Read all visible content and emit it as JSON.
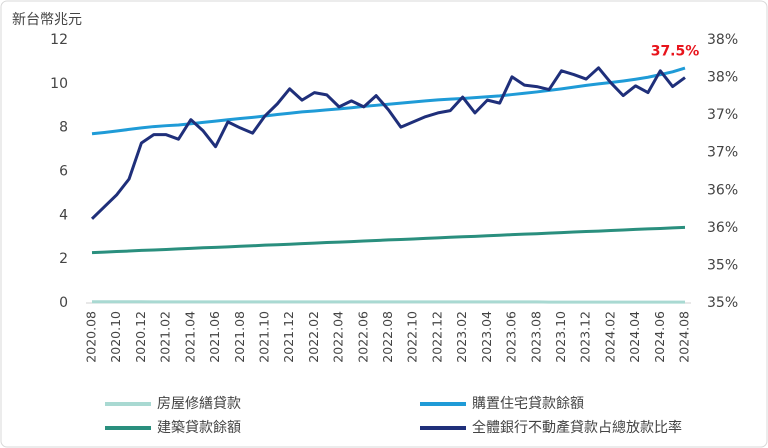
{
  "chart_data": {
    "type": "line",
    "y_label": "新台幣兆元",
    "categories": [
      "2020.08",
      null,
      "2020.10",
      null,
      "2020.12",
      null,
      "2021.02",
      null,
      "2021.04",
      null,
      "2021.06",
      null,
      "2021.08",
      null,
      "2021.10",
      null,
      "2021.12",
      null,
      "2022.02",
      null,
      "2022.04",
      null,
      "2022.06",
      null,
      "2022.08",
      null,
      "2022.10",
      null,
      "2022.12",
      null,
      "2023.02",
      null,
      "2023.04",
      null,
      "2023.06",
      null,
      "2023.08",
      null,
      "2023.10",
      null,
      "2023.12",
      null,
      "2024.02",
      null,
      "2024.04",
      null,
      "2024.06",
      null,
      "2024.08"
    ],
    "ylim": [
      0,
      12
    ],
    "yticks": [
      0,
      2,
      4,
      6,
      8,
      10,
      12
    ],
    "y2lim": [
      34.5,
      38.0
    ],
    "y2ticks": [
      {
        "value": 34.5,
        "label": "35%"
      },
      {
        "value": 35.0,
        "label": "35%"
      },
      {
        "value": 35.5,
        "label": "36%"
      },
      {
        "value": 36.0,
        "label": "36%"
      },
      {
        "value": 36.5,
        "label": "37%"
      },
      {
        "value": 37.0,
        "label": "37%"
      },
      {
        "value": 37.5,
        "label": "38%"
      },
      {
        "value": 38.0,
        "label": "38%"
      }
    ],
    "grid": false,
    "series": [
      {
        "name": "房屋修繕貸款",
        "color": "#a9d9d2",
        "values": [
          0.06,
          0.06,
          0.06,
          0.06,
          0.06,
          0.05,
          0.05,
          0.05,
          0.05,
          0.05,
          0.05,
          0.05,
          0.05,
          0.05,
          0.05,
          0.05,
          0.05,
          0.05,
          0.05,
          0.05,
          0.05,
          0.05,
          0.05,
          0.05,
          0.05,
          0.05,
          0.05,
          0.05,
          0.05,
          0.05,
          0.05,
          0.05,
          0.05,
          0.05,
          0.05,
          0.05,
          0.05,
          0.04,
          0.04,
          0.04,
          0.04,
          0.04,
          0.04,
          0.04,
          0.04,
          0.04,
          0.04,
          0.04,
          0.04
        ]
      },
      {
        "name": "購置住宅貸款餘額",
        "color": "#1f9bd7",
        "values": [
          7.72,
          7.78,
          7.85,
          7.92,
          7.99,
          8.05,
          8.09,
          8.12,
          8.18,
          8.24,
          8.3,
          8.36,
          8.42,
          8.47,
          8.53,
          8.6,
          8.66,
          8.72,
          8.76,
          8.81,
          8.86,
          8.91,
          8.97,
          9.02,
          9.07,
          9.12,
          9.17,
          9.22,
          9.27,
          9.3,
          9.33,
          9.37,
          9.41,
          9.45,
          9.51,
          9.57,
          9.63,
          9.7,
          9.77,
          9.85,
          9.93,
          10.0,
          10.06,
          10.13,
          10.21,
          10.3,
          10.42,
          10.55,
          10.72
        ]
      },
      {
        "name": "建築貸款餘額",
        "color": "#2a8f7e",
        "values": [
          2.3,
          2.32,
          2.35,
          2.37,
          2.4,
          2.42,
          2.44,
          2.47,
          2.49,
          2.52,
          2.54,
          2.56,
          2.59,
          2.61,
          2.64,
          2.66,
          2.68,
          2.71,
          2.73,
          2.76,
          2.78,
          2.8,
          2.83,
          2.85,
          2.88,
          2.9,
          2.92,
          2.95,
          2.97,
          3.0,
          3.02,
          3.04,
          3.07,
          3.09,
          3.12,
          3.14,
          3.16,
          3.19,
          3.21,
          3.24,
          3.26,
          3.28,
          3.31,
          3.33,
          3.36,
          3.38,
          3.4,
          3.43,
          3.45
        ]
      },
      {
        "name": "全體銀行不動產貸款占總放款比率",
        "color": "#1f2f7a",
        "axis": "y2",
        "values": [
          35.62,
          35.78,
          35.94,
          36.15,
          36.63,
          36.74,
          36.74,
          36.68,
          36.94,
          36.79,
          36.58,
          36.91,
          36.83,
          36.76,
          36.99,
          37.15,
          37.35,
          37.2,
          37.3,
          37.27,
          37.11,
          37.19,
          37.11,
          37.26,
          37.07,
          36.84,
          36.91,
          36.98,
          37.03,
          37.06,
          37.24,
          37.03,
          37.2,
          37.16,
          37.51,
          37.4,
          37.38,
          37.34,
          37.59,
          37.54,
          37.48,
          37.63,
          37.43,
          37.26,
          37.39,
          37.3,
          37.59,
          37.38,
          37.5
        ],
        "value_labels": [
          null,
          null,
          null,
          null,
          null,
          null,
          null,
          null,
          null,
          null,
          null,
          null,
          null,
          null,
          null,
          null,
          null,
          null,
          null,
          null,
          null,
          null,
          null,
          null,
          null,
          null,
          null,
          null,
          null,
          null,
          null,
          null,
          null,
          null,
          null,
          null,
          null,
          null,
          null,
          null,
          null,
          null,
          null,
          null,
          null,
          null,
          null,
          null,
          "37.5%"
        ]
      }
    ]
  }
}
